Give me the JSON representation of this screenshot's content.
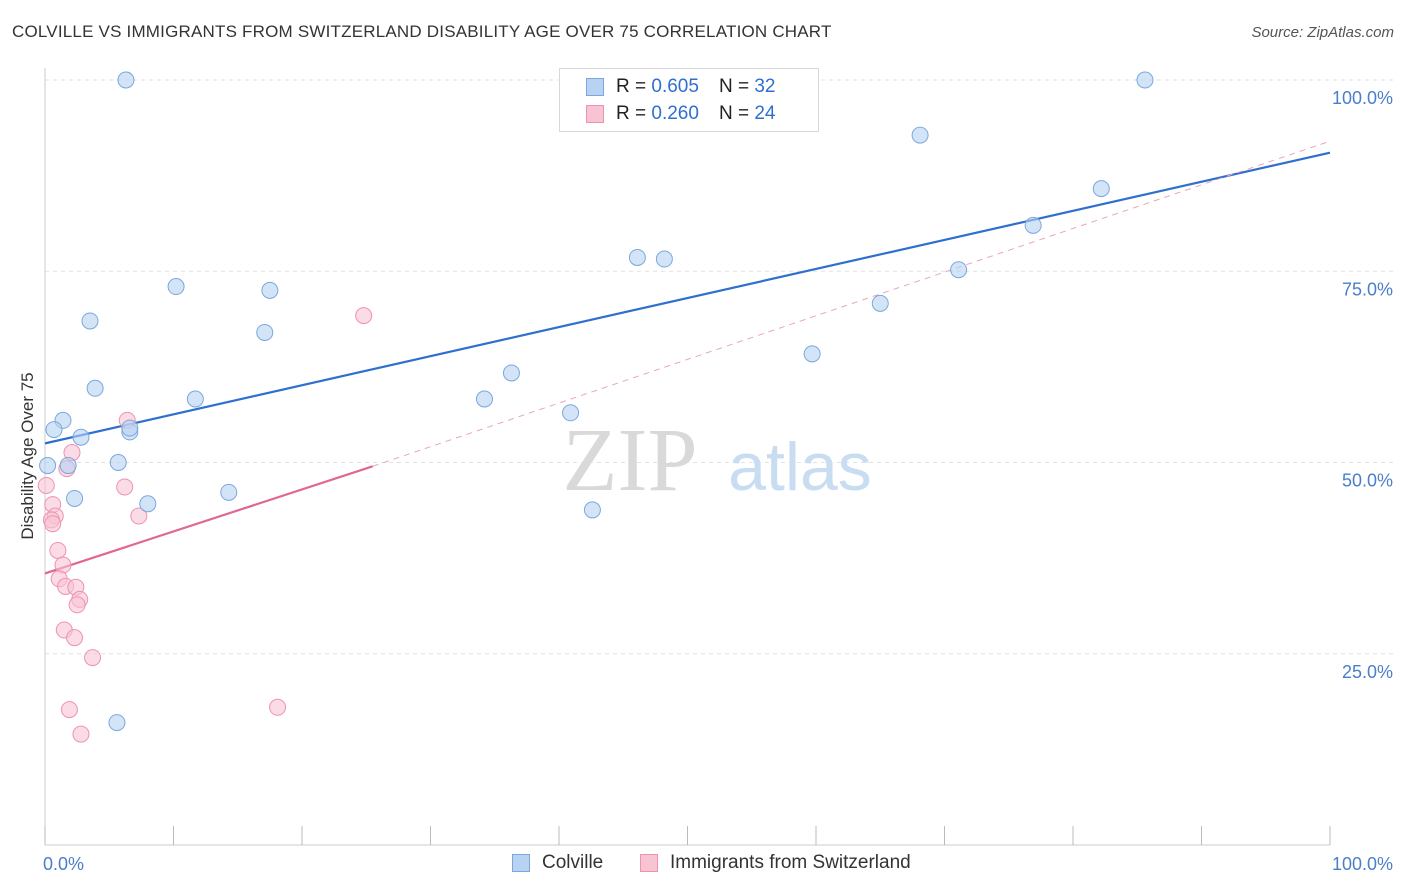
{
  "header": {
    "title": "COLVILLE VS IMMIGRANTS FROM SWITZERLAND DISABILITY AGE OVER 75 CORRELATION CHART",
    "source": "Source: ZipAtlas.com"
  },
  "watermark": {
    "zip": "ZIP",
    "atlas": "atlas"
  },
  "legend": {
    "rows": [
      {
        "r_label": "R = ",
        "r_value": "0.605",
        "n_label": "N = ",
        "n_value": "32"
      },
      {
        "r_label": "R = ",
        "r_value": "0.260",
        "n_label": "N = ",
        "n_value": "24"
      }
    ]
  },
  "bottom_legend": {
    "series_a": "Colville",
    "series_b": "Immigrants from Switzerland"
  },
  "colors": {
    "blue_fill": "#b8d2f2",
    "blue_stroke": "#7aa7de",
    "blue_line": "#2e6fcf",
    "pink_fill": "#f8c3d3",
    "pink_stroke": "#ee93ae",
    "pink_line": "#e2678e",
    "tick_text": "#4a7fc8",
    "grid": "#e2e2e2"
  },
  "chart_data": {
    "type": "scatter",
    "title": "COLVILLE VS IMMIGRANTS FROM SWITZERLAND DISABILITY AGE OVER 75 CORRELATION CHART",
    "ylabel": "Disability Age Over 75",
    "xlabel": "",
    "xlim": [
      0,
      100
    ],
    "ylim": [
      0,
      102
    ],
    "x_tick_labels": [
      "0.0%",
      "100.0%"
    ],
    "y_ticks": [
      25,
      50,
      75,
      100
    ],
    "y_tick_labels": [
      "25.0%",
      "50.0%",
      "75.0%",
      "100.0%"
    ],
    "grid": true,
    "legend_position": "top-center",
    "series": [
      {
        "name": "Colville",
        "r": 0.605,
        "n": 32,
        "points": [
          [
            6.3,
            100.0
          ],
          [
            85.6,
            100.0
          ],
          [
            68.1,
            92.8
          ],
          [
            82.2,
            85.8
          ],
          [
            76.9,
            81.0
          ],
          [
            46.1,
            76.8
          ],
          [
            48.2,
            76.6
          ],
          [
            71.1,
            75.2
          ],
          [
            10.2,
            73.0
          ],
          [
            17.5,
            72.5
          ],
          [
            65.0,
            70.8
          ],
          [
            3.5,
            68.5
          ],
          [
            17.1,
            67.0
          ],
          [
            59.7,
            64.2
          ],
          [
            36.3,
            61.7
          ],
          [
            3.9,
            59.7
          ],
          [
            11.7,
            58.3
          ],
          [
            34.2,
            58.3
          ],
          [
            40.9,
            56.5
          ],
          [
            1.4,
            55.5
          ],
          [
            0.7,
            54.3
          ],
          [
            6.6,
            54.0
          ],
          [
            2.8,
            53.3
          ],
          [
            6.6,
            54.5
          ],
          [
            0.2,
            49.6
          ],
          [
            1.8,
            49.6
          ],
          [
            5.7,
            50.0
          ],
          [
            14.3,
            46.1
          ],
          [
            2.3,
            45.3
          ],
          [
            8.0,
            44.6
          ],
          [
            42.6,
            43.8
          ],
          [
            5.6,
            16.0
          ]
        ],
        "trend": {
          "x": [
            0,
            100
          ],
          "y": [
            52.5,
            90.5
          ]
        }
      },
      {
        "name": "Immigrants from Switzerland",
        "r": 0.26,
        "n": 24,
        "points": [
          [
            24.8,
            69.2
          ],
          [
            6.4,
            55.5
          ],
          [
            2.1,
            51.3
          ],
          [
            1.7,
            49.2
          ],
          [
            6.2,
            46.8
          ],
          [
            0.6,
            44.5
          ],
          [
            0.8,
            43.0
          ],
          [
            7.3,
            43.0
          ],
          [
            0.5,
            42.5
          ],
          [
            0.6,
            42.0
          ],
          [
            1.0,
            38.5
          ],
          [
            1.4,
            36.6
          ],
          [
            1.1,
            34.8
          ],
          [
            1.6,
            33.8
          ],
          [
            2.4,
            33.7
          ],
          [
            2.7,
            32.1
          ],
          [
            2.5,
            31.4
          ],
          [
            1.5,
            28.1
          ],
          [
            2.3,
            27.1
          ],
          [
            3.7,
            24.5
          ],
          [
            18.1,
            18.0
          ],
          [
            1.9,
            17.7
          ],
          [
            2.8,
            14.5
          ],
          [
            0.1,
            47.0
          ]
        ],
        "trend": {
          "x": [
            0,
            25.5
          ],
          "y": [
            35.5,
            49.5
          ]
        },
        "trend_extended": {
          "x": [
            25.5,
            100
          ],
          "y": [
            49.5,
            92.0
          ]
        }
      }
    ]
  }
}
